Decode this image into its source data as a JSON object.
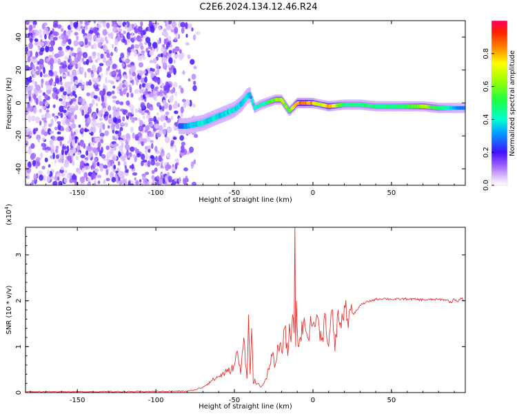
{
  "title": "C2E6.2024.134.12.46.R24",
  "chart_data": [
    {
      "type": "heatmap",
      "name": "spectrogram",
      "xlabel": "Height of straight line (km)",
      "ylabel": "Frequency (Hz)",
      "xlim": [
        -183,
        97
      ],
      "ylim": [
        -50,
        50
      ],
      "x_ticks": [
        "-150",
        "-100",
        "-50",
        "0",
        "50"
      ],
      "x_tick_values": [
        -150,
        -100,
        -50,
        0,
        50
      ],
      "y_ticks": [
        "-40",
        "-20",
        "0",
        "20",
        "40"
      ],
      "y_tick_values": [
        -40,
        -20,
        0,
        20,
        40
      ],
      "noise_region_x": [
        -183,
        -72
      ],
      "ridge": {
        "x": [
          -85,
          -80,
          -75,
          -70,
          -65,
          -60,
          -55,
          -50,
          -45,
          -42,
          -40,
          -37,
          -33,
          -30,
          -27,
          -24,
          -20,
          -15,
          -10,
          -5,
          0,
          5,
          10,
          20,
          30,
          40,
          50,
          60,
          70,
          80,
          90,
          97
        ],
        "y": [
          -14,
          -14,
          -13,
          -12,
          -10,
          -8,
          -6,
          -4,
          0,
          4,
          5,
          -3,
          -1,
          0,
          1,
          2,
          2,
          -5,
          0,
          0,
          0,
          -1,
          -2,
          -1,
          -1,
          -2,
          -2,
          -2,
          -2,
          -3,
          -3,
          -3
        ],
        "amplitude": [
          0.25,
          0.35,
          0.4,
          0.4,
          0.4,
          0.4,
          0.4,
          0.4,
          0.4,
          0.4,
          0.35,
          0.45,
          0.45,
          0.5,
          0.6,
          0.65,
          0.7,
          0.6,
          0.9,
          0.95,
          0.85,
          0.7,
          0.9,
          0.5,
          0.5,
          0.5,
          0.5,
          0.55,
          0.7,
          0.55,
          0.35,
          0.3
        ]
      }
    },
    {
      "type": "colorbar",
      "name": "colorbar",
      "label": "Normalized spectral amplitude",
      "range": [
        0,
        1
      ],
      "ticks": [
        "0.0",
        "0.2",
        "0.4",
        "0.6",
        "0.8"
      ],
      "tick_values": [
        0,
        0.2,
        0.4,
        0.6,
        0.8
      ]
    },
    {
      "type": "line",
      "name": "snr",
      "xlabel": "Height of straight line (km)",
      "ylabel": "SNR (10 * v/v)",
      "exponent_label": "(x10",
      "exponent_power": "4",
      "exponent_close": ")",
      "xlim": [
        -183,
        97
      ],
      "ylim": [
        0,
        3.6
      ],
      "x_ticks": [
        "-150",
        "-100",
        "-50",
        "0",
        "50"
      ],
      "x_tick_values": [
        -150,
        -100,
        -50,
        0,
        50
      ],
      "y_ticks": [
        "0",
        "1",
        "2",
        "3"
      ],
      "y_tick_values": [
        0,
        1,
        2,
        3
      ],
      "color": "#e8312f",
      "x": [
        -183,
        -120,
        -80,
        -75,
        -70,
        -65,
        -60,
        -55,
        -52,
        -50,
        -48,
        -46,
        -44,
        -42,
        -41,
        -40,
        -39,
        -38,
        -37,
        -36,
        -35,
        -34,
        -33,
        -32,
        -30,
        -28,
        -26,
        -24,
        -22,
        -20,
        -18,
        -16,
        -15,
        -14,
        -13,
        -12,
        -11.5,
        -11,
        -10.5,
        -10,
        -9,
        -8,
        -6,
        -4,
        -2,
        0,
        2,
        4,
        6,
        8,
        10,
        12,
        14,
        16,
        18,
        20,
        22,
        24,
        26,
        28,
        30,
        35,
        40,
        45,
        50,
        60,
        70,
        80,
        85,
        88,
        90,
        92,
        94,
        97
      ],
      "y": [
        0.02,
        0.02,
        0.03,
        0.06,
        0.12,
        0.25,
        0.35,
        0.45,
        0.5,
        0.6,
        0.9,
        0.4,
        1.2,
        0.3,
        1.7,
        0.4,
        1.4,
        0.2,
        0.3,
        0.18,
        0.2,
        0.15,
        0.12,
        0.16,
        0.3,
        0.5,
        0.8,
        0.6,
        1.0,
        0.9,
        1.4,
        0.8,
        1.5,
        1.1,
        1.7,
        1.3,
        3.6,
        1.0,
        2.0,
        1.4,
        1.0,
        1.2,
        1.5,
        1.3,
        1.4,
        1.5,
        1.6,
        1.4,
        1.2,
        1.7,
        1.0,
        1.8,
        0.9,
        1.8,
        1.4,
        1.9,
        1.6,
        1.8,
        1.7,
        1.8,
        1.9,
        1.98,
        2.03,
        2.05,
        2.03,
        2.04,
        2.02,
        2.03,
        2.02,
        1.96,
        2.04,
        1.98,
        2.06,
        2.0
      ]
    }
  ]
}
